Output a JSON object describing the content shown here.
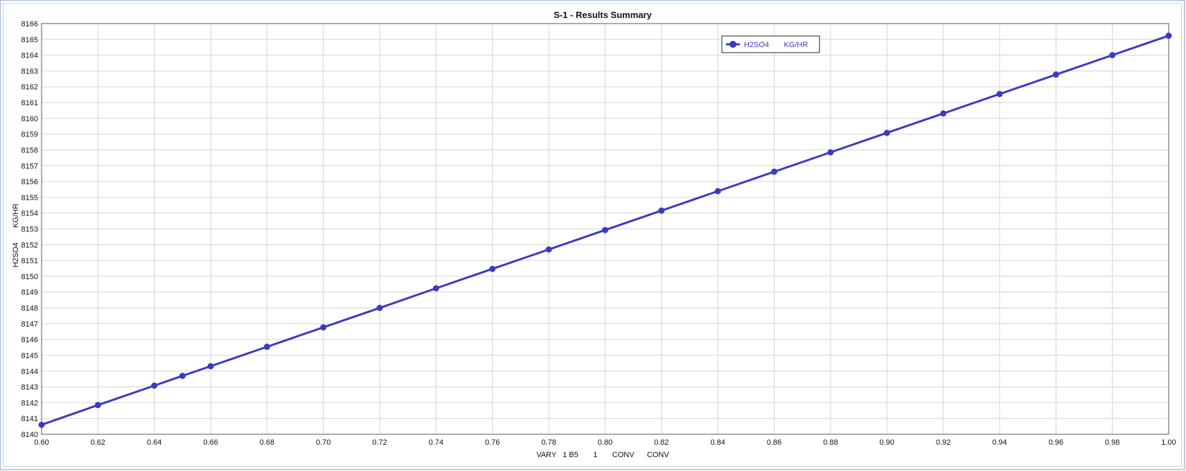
{
  "chart_data": {
    "type": "line",
    "title": "S-1 - Results Summary",
    "xlabel": "VARY   1 B5       1       CONV      CONV",
    "ylabel": "H2SO4       KG/HR",
    "xlim": [
      0.6,
      1.0
    ],
    "ylim": [
      8140,
      8166
    ],
    "x_ticks": [
      "0.60",
      "0.62",
      "0.64",
      "0.66",
      "0.68",
      "0.70",
      "0.72",
      "0.74",
      "0.76",
      "0.78",
      "0.80",
      "0.82",
      "0.84",
      "0.86",
      "0.88",
      "0.90",
      "0.92",
      "0.94",
      "0.96",
      "0.98",
      "1.00"
    ],
    "y_ticks": [
      "8140",
      "8141",
      "8142",
      "8143",
      "8144",
      "8145",
      "8146",
      "8147",
      "8148",
      "8149",
      "8150",
      "8151",
      "8152",
      "8153",
      "8154",
      "8155",
      "8156",
      "8157",
      "8158",
      "8159",
      "8160",
      "8161",
      "8162",
      "8163",
      "8164",
      "8165",
      "8166"
    ],
    "grid": true,
    "legend_position": "top-right",
    "series": [
      {
        "name": "H2SO4       KG/HR",
        "color": "#3b3bbf",
        "marker": "circle",
        "x": [
          0.6,
          0.62,
          0.64,
          0.65,
          0.66,
          0.68,
          0.7,
          0.72,
          0.74,
          0.76,
          0.78,
          0.8,
          0.82,
          0.84,
          0.86,
          0.88,
          0.9,
          0.92,
          0.94,
          0.96,
          0.98,
          1.0
        ],
        "y": [
          8140.6,
          8141.85,
          8143.08,
          8143.7,
          8144.31,
          8145.54,
          8146.77,
          8148.0,
          8149.24,
          8150.47,
          8151.7,
          8152.93,
          8154.16,
          8155.39,
          8156.62,
          8157.85,
          8159.08,
          8160.31,
          8161.54,
          8162.77,
          8164.0,
          8165.23
        ]
      }
    ]
  }
}
